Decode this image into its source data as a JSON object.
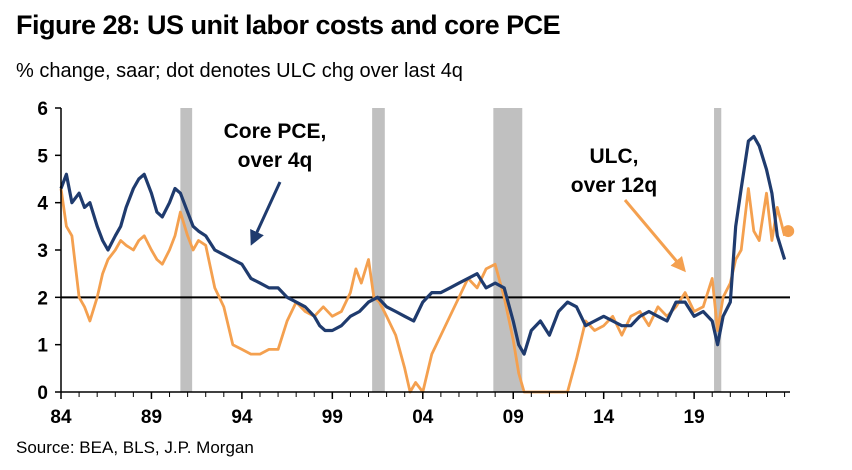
{
  "title": "Figure 28: US unit labor costs and core PCE",
  "subtitle": "% change, saar; dot denotes ULC chg over last 4q",
  "source": "Source: BEA, BLS, J.P. Morgan",
  "colors": {
    "core_pce": "#1f3b6e",
    "ulc": "#f4a04f",
    "recession": "#c0c0c0",
    "reference": "#000000"
  },
  "chart_data": {
    "type": "line",
    "title": "Figure 28: US unit labor costs and core PCE",
    "subtitle": "% change, saar; dot denotes ULC chg over last 4q",
    "ylim": [
      0,
      6
    ],
    "xlim": [
      1984,
      2024.3
    ],
    "y_ticks": [
      "0",
      "1",
      "2",
      "3",
      "4",
      "5",
      "6"
    ],
    "x_ticks": [
      {
        "label": "84",
        "year": 1984
      },
      {
        "label": "89",
        "year": 1989
      },
      {
        "label": "94",
        "year": 1994
      },
      {
        "label": "99",
        "year": 1999
      },
      {
        "label": "04",
        "year": 2004
      },
      {
        "label": "09",
        "year": 2009
      },
      {
        "label": "14",
        "year": 2014
      },
      {
        "label": "19",
        "year": 2019
      }
    ],
    "reference_line": 2,
    "recessions": [
      [
        1990.6,
        1991.25
      ],
      [
        2001.2,
        2001.9
      ],
      [
        2007.9,
        2009.5
      ],
      [
        2020.1,
        2020.5
      ]
    ],
    "annotations": [
      {
        "lines": [
          "Core PCE,",
          "over 4q"
        ],
        "target_series": "Core PCE, over 4q",
        "year": 2026.0,
        "value": 4.2
      },
      {
        "lines": [
          "ULC,",
          "over 12q"
        ],
        "target_series": "ULC, over 12q",
        "year": 2026.0,
        "value": 4.6
      }
    ],
    "ulc_last_4q_dot": {
      "year": 2024.2,
      "value": 3.4
    },
    "series": [
      {
        "name": "Core PCE, over 4q",
        "x": [
          1984.0,
          1984.3,
          1984.6,
          1985.0,
          1985.3,
          1985.6,
          1986.0,
          1986.3,
          1986.6,
          1987.0,
          1987.3,
          1987.6,
          1988.0,
          1988.3,
          1988.6,
          1989.0,
          1989.3,
          1989.6,
          1990.0,
          1990.3,
          1990.6,
          1991.0,
          1991.3,
          1991.6,
          1992.0,
          1992.5,
          1993.0,
          1993.5,
          1994.0,
          1994.5,
          1995.0,
          1995.5,
          1996.0,
          1996.5,
          1997.0,
          1997.5,
          1998.0,
          1998.3,
          1998.6,
          1999.0,
          1999.5,
          2000.0,
          2000.5,
          2001.0,
          2001.5,
          2002.0,
          2002.5,
          2003.0,
          2003.5,
          2004.0,
          2004.5,
          2005.0,
          2005.5,
          2006.0,
          2006.5,
          2007.0,
          2007.5,
          2008.0,
          2008.5,
          2009.0,
          2009.3,
          2009.6,
          2010.0,
          2010.5,
          2011.0,
          2011.5,
          2012.0,
          2012.5,
          2013.0,
          2013.5,
          2014.0,
          2014.5,
          2015.0,
          2015.5,
          2016.0,
          2016.5,
          2017.0,
          2017.5,
          2018.0,
          2018.5,
          2019.0,
          2019.5,
          2020.0,
          2020.3,
          2020.6,
          2021.0,
          2021.3,
          2021.6,
          2022.0,
          2022.3,
          2022.6,
          2023.0,
          2023.3,
          2023.6,
          2024.0
        ],
        "values": [
          4.3,
          4.6,
          4.0,
          4.2,
          3.9,
          4.0,
          3.5,
          3.2,
          3.0,
          3.3,
          3.5,
          3.9,
          4.3,
          4.5,
          4.6,
          4.2,
          3.8,
          3.7,
          4.0,
          4.3,
          4.2,
          3.8,
          3.5,
          3.4,
          3.3,
          3.0,
          2.9,
          2.8,
          2.7,
          2.4,
          2.3,
          2.2,
          2.2,
          2.0,
          1.9,
          1.8,
          1.6,
          1.4,
          1.3,
          1.3,
          1.4,
          1.6,
          1.7,
          1.9,
          2.0,
          1.8,
          1.7,
          1.6,
          1.5,
          1.9,
          2.1,
          2.1,
          2.2,
          2.3,
          2.4,
          2.5,
          2.2,
          2.3,
          2.2,
          1.5,
          1.0,
          0.8,
          1.3,
          1.5,
          1.2,
          1.7,
          1.9,
          1.8,
          1.4,
          1.5,
          1.6,
          1.5,
          1.4,
          1.4,
          1.6,
          1.7,
          1.6,
          1.5,
          1.9,
          1.9,
          1.6,
          1.7,
          1.5,
          1.0,
          1.6,
          1.9,
          3.5,
          4.3,
          5.3,
          5.4,
          5.2,
          4.7,
          4.2,
          3.3,
          2.8
        ]
      },
      {
        "name": "ULC, over 12q",
        "x": [
          1984.0,
          1984.3,
          1984.6,
          1985.0,
          1985.3,
          1985.6,
          1986.0,
          1986.3,
          1986.6,
          1987.0,
          1987.3,
          1987.6,
          1988.0,
          1988.3,
          1988.6,
          1989.0,
          1989.3,
          1989.6,
          1990.0,
          1990.3,
          1990.6,
          1991.0,
          1991.3,
          1991.6,
          1992.0,
          1992.5,
          1993.0,
          1993.5,
          1994.0,
          1994.5,
          1995.0,
          1995.5,
          1996.0,
          1996.5,
          1997.0,
          1997.5,
          1998.0,
          1998.5,
          1999.0,
          1999.5,
          2000.0,
          2000.3,
          2000.6,
          2001.0,
          2001.3,
          2001.6,
          2002.0,
          2002.5,
          2003.0,
          2003.3,
          2003.6,
          2004.0,
          2004.5,
          2005.0,
          2005.5,
          2006.0,
          2006.5,
          2007.0,
          2007.5,
          2008.0,
          2008.5,
          2009.0,
          2009.3,
          2009.6,
          2010.0,
          2012.0,
          2012.5,
          2013.0,
          2013.5,
          2014.0,
          2014.5,
          2015.0,
          2015.5,
          2016.0,
          2016.5,
          2017.0,
          2017.5,
          2018.0,
          2018.5,
          2019.0,
          2019.5,
          2020.0,
          2020.3,
          2020.6,
          2021.0,
          2021.3,
          2021.6,
          2022.0,
          2022.3,
          2022.6,
          2023.0,
          2023.3,
          2023.6,
          2024.0
        ],
        "values": [
          4.3,
          3.5,
          3.3,
          2.0,
          1.8,
          1.5,
          2.0,
          2.5,
          2.8,
          3.0,
          3.2,
          3.1,
          3.0,
          3.2,
          3.3,
          3.0,
          2.8,
          2.7,
          3.0,
          3.3,
          3.8,
          3.3,
          3.0,
          3.2,
          3.1,
          2.2,
          1.8,
          1.0,
          0.9,
          0.8,
          0.8,
          0.9,
          0.9,
          1.5,
          1.9,
          1.7,
          1.6,
          1.8,
          1.6,
          1.7,
          2.1,
          2.6,
          2.3,
          2.8,
          2.0,
          1.9,
          1.6,
          1.2,
          0.5,
          0.0,
          0.2,
          0.0,
          0.8,
          1.2,
          1.6,
          2.0,
          2.4,
          2.2,
          2.6,
          2.7,
          2.0,
          1.1,
          0.4,
          0.0,
          0.0,
          0.0,
          0.7,
          1.5,
          1.3,
          1.4,
          1.6,
          1.2,
          1.6,
          1.7,
          1.4,
          1.8,
          1.6,
          1.8,
          2.1,
          1.7,
          1.8,
          2.4,
          1.3,
          2.0,
          2.3,
          2.8,
          3.0,
          4.3,
          3.4,
          3.2,
          4.2,
          3.2,
          3.9,
          3.3
        ]
      }
    ]
  }
}
